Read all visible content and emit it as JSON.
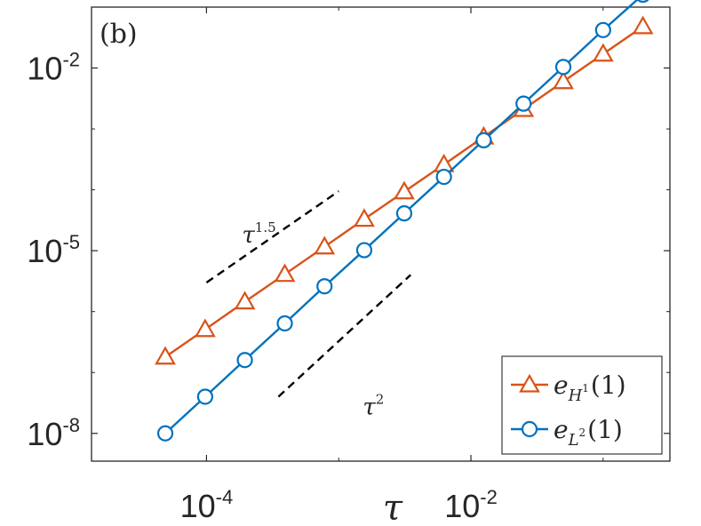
{
  "chart_data": {
    "type": "line",
    "xscale": "log",
    "yscale": "log",
    "panel_label": "(b)",
    "xlabel": "τ",
    "xlim": [
      1.35e-05,
      0.32
    ],
    "ylim": [
      3.5e-09,
      0.1
    ],
    "xticks": [
      {
        "value": 0.0001,
        "base": "10",
        "exp": "-4"
      },
      {
        "value": 0.01,
        "base": "10",
        "exp": "-2"
      }
    ],
    "yticks": [
      {
        "value": 1e-08,
        "base": "10",
        "exp": "-8"
      },
      {
        "value": 1e-05,
        "base": "10",
        "exp": "-5"
      },
      {
        "value": 0.01,
        "base": "10",
        "exp": "-2"
      }
    ],
    "series": [
      {
        "name": "e_{H^1}(1)",
        "legend_main": "e",
        "legend_sub": "H",
        "legend_sup": "1",
        "legend_arg": "(1)",
        "color": "#D95319",
        "marker": "triangle",
        "x": [
          4.88e-05,
          9.77e-05,
          0.000195,
          0.000391,
          0.000781,
          0.00156,
          0.00313,
          0.00625,
          0.0125,
          0.025,
          0.05,
          0.1,
          0.2
        ],
        "y": [
          1.8e-07,
          5.1e-07,
          1.45e-06,
          4.1e-06,
          1.16e-05,
          3.3e-05,
          9.3e-05,
          0.00026,
          0.00074,
          0.0021,
          0.006,
          0.017,
          0.048
        ]
      },
      {
        "name": "e_{L^2}(1)",
        "legend_main": "e",
        "legend_sub": "L",
        "legend_sup": "2",
        "legend_arg": "(1)",
        "color": "#0072BD",
        "marker": "circle",
        "x": [
          4.88e-05,
          9.77e-05,
          0.000195,
          0.000391,
          0.000781,
          0.00156,
          0.00313,
          0.00625,
          0.0125,
          0.025,
          0.05,
          0.1,
          0.2
        ],
        "y": [
          1e-08,
          4e-08,
          1.6e-07,
          6.4e-07,
          2.6e-06,
          1.02e-05,
          4.1e-05,
          0.000163,
          0.00065,
          0.0026,
          0.0104,
          0.042,
          0.16
        ]
      }
    ],
    "reference_lines": [
      {
        "label": "τ",
        "exp": "1.5",
        "slope": 1.5,
        "x": [
          0.0001,
          0.001
        ],
        "y": [
          3e-06,
          9.49e-05
        ]
      },
      {
        "label": "τ",
        "exp": "2",
        "slope": 2,
        "x": [
          0.00035,
          0.0035
        ],
        "y": [
          4e-08,
          4e-06
        ]
      }
    ]
  }
}
